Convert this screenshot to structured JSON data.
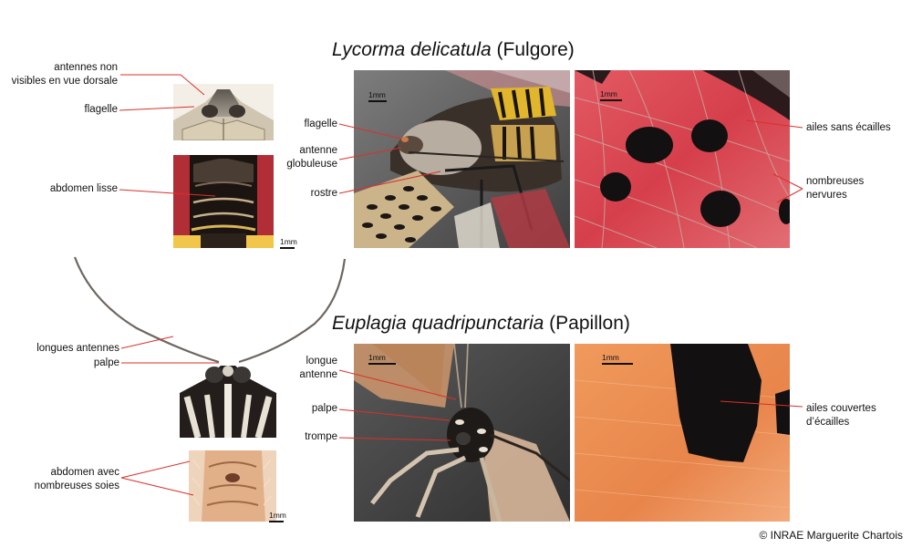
{
  "lycorma": {
    "title_italic": "Lycorma delicatula",
    "title_rest": " (Fulgore)",
    "left_labels": {
      "antennes": "antennes non\nvisibles en vue dorsale",
      "flagelle": "flagelle",
      "abdomen": "abdomen lisse"
    },
    "center_labels": {
      "flagelle": "flagelle",
      "antenne": "antenne\nglobuleuse",
      "rostre": "rostre"
    },
    "right_labels": {
      "ailes": "ailes sans écailles",
      "nervures": "nombreuses\nnervures"
    }
  },
  "euplagia": {
    "title_italic": "Euplagia quadripunctaria",
    "title_rest": " (Papillon)",
    "left_labels": {
      "antennes": "longues antennes",
      "palpe": "palpe",
      "abdomen": "abdomen avec\nnombreuses soies"
    },
    "center_labels": {
      "antenne": "longue\nantenne",
      "palpe": "palpe",
      "trompe": "trompe"
    },
    "right_labels": {
      "ailes": "ailes couvertes\nd’écailles"
    }
  },
  "scale_label": "1mm",
  "credit": "© INRAE Marguerite Chartois",
  "colors": {
    "leader_line": "#d9312b",
    "wing_red": "#d8434f",
    "wing_orange": "#ea9055",
    "spot_black": "#121010"
  }
}
